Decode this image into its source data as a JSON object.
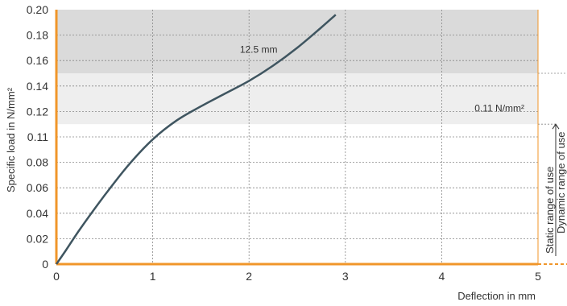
{
  "chart_data": {
    "type": "line",
    "title": "",
    "xlabel": "Deflection in mm",
    "ylabel": "Specific load in N/mm²",
    "xlim": [
      0,
      5
    ],
    "ylim": [
      0,
      0.2
    ],
    "x_ticks": [
      "0",
      "1",
      "2",
      "3",
      "4",
      "5"
    ],
    "y_ticks": [
      "0",
      "0.02",
      "0.04",
      "0.06",
      "0.08",
      "0.11",
      "0.12",
      "0.14",
      "0.16",
      "0.18",
      "0.20"
    ],
    "grid": true,
    "series": [
      {
        "x": [
          0,
          0.1,
          0.25,
          0.5,
          0.75,
          1.0,
          1.25,
          1.5,
          1.75,
          2.0,
          2.25,
          2.5,
          2.75,
          2.9
        ],
        "y": [
          0,
          0.011,
          0.028,
          0.054,
          0.078,
          0.098,
          0.113,
          0.124,
          0.134,
          0.144,
          0.156,
          0.17,
          0.186,
          0.196
        ]
      }
    ],
    "shaded_bands": [
      {
        "from": 0.11,
        "to": 0.15,
        "color": "#eeeeee"
      },
      {
        "from": 0.15,
        "to": 0.2,
        "color": "#dadada"
      }
    ],
    "annotations": [
      {
        "text": "12.5 mm",
        "x": 2.1,
        "y": 0.166
      },
      {
        "text": "0.11 N/mm²",
        "x": 4.6,
        "y": 0.12
      }
    ],
    "range_labels": {
      "static": "Static range of use",
      "dynamic": "Dynamic range of use"
    }
  },
  "colors": {
    "line": "#3f5560",
    "axis_accent": "#f0962a",
    "band_light": "#eeeeee",
    "band_dark": "#dadada",
    "grid": "#888888"
  }
}
